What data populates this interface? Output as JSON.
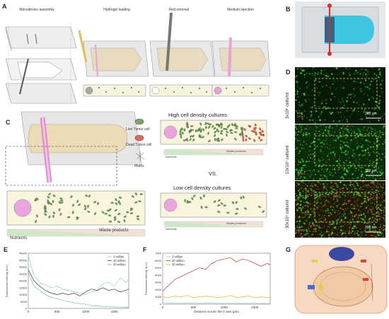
{
  "panels": {
    "A": {
      "label": "A",
      "steps": [
        "Microdevice assembly",
        "Hydrogel loading",
        "Rod removal",
        "Medium injection"
      ]
    },
    "B": {
      "label": "B"
    },
    "C": {
      "label": "C",
      "legend": [
        "Live Tumor cell",
        "Dead Tumor cell",
        "Matrix"
      ],
      "high_title": "High cell density cultures",
      "low_title": "Low cell density cultures",
      "vs": "VS.",
      "nutrients": "Nutrients",
      "waste": "Waste products"
    },
    "D": {
      "label": "D",
      "rows": [
        {
          "density": "3x10⁶ cells/ml",
          "scale": "300 um",
          "live": "Live",
          "dead": "Dead"
        },
        {
          "density": "10x10⁶ cells/ml",
          "scale": "300 um",
          "live": "Live",
          "dead": "Dead"
        },
        {
          "density": "30x10⁶ cells/ml",
          "scale": "300 um",
          "live": "Live",
          "dead": "Dead"
        }
      ]
    },
    "E": {
      "label": "E"
    },
    "F": {
      "label": "F"
    },
    "G": {
      "label": "G"
    }
  },
  "colors": {
    "live": "#5a8a4a",
    "dead": "#c0503a",
    "pink": "#e8a3d8",
    "series_3m": "#8fd6a8",
    "series_10m": "#3a3a3a",
    "series_30m": "#5fc4a0",
    "f_10m": "#c0392b",
    "f_30m": "#d4ac0d"
  },
  "chart_data": [
    {
      "type": "line",
      "panel": "E",
      "ylabel": "Fluorescence intensity (A.U.)",
      "xlim": [
        0,
        1750
      ],
      "ylim": [
        0,
        40000
      ],
      "xticks": [
        "0",
        "500",
        "1000",
        "1500"
      ],
      "yticks": [
        "0",
        "5000",
        "10000",
        "15000",
        "20000",
        "25000",
        "30000",
        "35000",
        "40000"
      ],
      "legend_position": "top-right",
      "x": [
        0,
        100,
        200,
        300,
        400,
        500,
        600,
        700,
        800,
        900,
        1000,
        1100,
        1200,
        1300,
        1400,
        1500,
        1600,
        1700,
        1750
      ],
      "series": [
        {
          "name": "3 million",
          "values": [
            38000,
            24000,
            19000,
            17000,
            15000,
            16000,
            14000,
            13000,
            12000,
            11000,
            10000,
            12000,
            13000,
            18000,
            19000,
            16000,
            22000,
            19000,
            21000
          ]
        },
        {
          "name": "10 million",
          "values": [
            28000,
            20000,
            16000,
            13000,
            11000,
            10000,
            11000,
            10000,
            11000,
            9000,
            12000,
            14000,
            13000,
            15000,
            13000,
            14000,
            12000,
            13000,
            14000
          ]
        },
        {
          "name": "30 million",
          "values": [
            26000,
            16000,
            13000,
            10000,
            8000,
            7000,
            6000,
            5000,
            4000,
            3500,
            3000,
            2000,
            1800,
            1500,
            1200,
            1000,
            900,
            800,
            800
          ]
        }
      ]
    },
    {
      "type": "line",
      "panel": "F",
      "xlabel": "Distance across the X axis (μm)",
      "ylabel": "Fluorescence intensity (A.U.)",
      "xlim": [
        0,
        1750
      ],
      "ylim": [
        0,
        7000
      ],
      "xticks": [
        "0",
        "500",
        "1000",
        "1500"
      ],
      "yticks": [
        "0",
        "1000",
        "2000",
        "3000",
        "4000",
        "5000",
        "6000",
        "7000"
      ],
      "legend_position": "top-left",
      "x": [
        0,
        100,
        200,
        300,
        400,
        500,
        600,
        700,
        800,
        900,
        1000,
        1100,
        1200,
        1300,
        1400,
        1500,
        1600,
        1700,
        1750
      ],
      "series": [
        {
          "name": "3 million",
          "values": [
            200,
            150,
            150,
            120,
            150,
            130,
            120,
            150,
            130,
            120,
            110,
            130,
            120,
            110,
            130,
            120,
            110,
            120,
            120
          ]
        },
        {
          "name": "10 million",
          "values": [
            1800,
            2600,
            3400,
            3800,
            4200,
            4600,
            5000,
            4800,
            5600,
            6000,
            6200,
            6400,
            5800,
            6200,
            6000,
            5600,
            5200,
            5600,
            5400
          ]
        },
        {
          "name": "30 million",
          "values": [
            1000,
            900,
            1100,
            1000,
            1200,
            900,
            1000,
            1100,
            1000,
            900,
            1000,
            1200,
            900,
            1000,
            1100,
            900,
            1000,
            900,
            1000
          ]
        }
      ]
    }
  ]
}
